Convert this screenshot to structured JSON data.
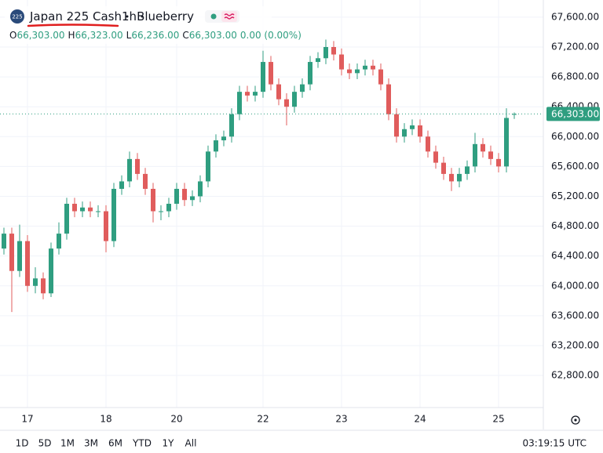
{
  "header": {
    "icon": "225",
    "symbol": "Japan 225 Cash",
    "interval": "1h",
    "broker": "Blueberry",
    "ohlc": [
      {
        "key": "O",
        "value": "66,303.00"
      },
      {
        "key": "H",
        "value": "66,323.00"
      },
      {
        "key": "L",
        "value": "66,236.00"
      },
      {
        "key": "C",
        "value": "66,303.00"
      }
    ],
    "change": "0.00 (0.00%)"
  },
  "chart_data": {
    "type": "candlestick",
    "categories": [
      null,
      null,
      null,
      "17",
      null,
      null,
      null,
      null,
      null,
      null,
      null,
      null,
      null,
      "18",
      null,
      null,
      null,
      null,
      null,
      null,
      null,
      null,
      "20",
      null,
      null,
      null,
      null,
      null,
      null,
      null,
      null,
      null,
      null,
      "22",
      null,
      null,
      null,
      null,
      null,
      null,
      null,
      null,
      null,
      "23",
      null,
      null,
      null,
      null,
      null,
      null,
      null,
      null,
      null,
      "24",
      null,
      null,
      null,
      null,
      null,
      null,
      null,
      null,
      null,
      "25",
      null,
      null
    ],
    "open": [
      64500,
      64700,
      64200,
      64600,
      64000,
      64100,
      63900,
      64500,
      64700,
      65100,
      65000,
      65050,
      65000,
      65000,
      64600,
      65300,
      65400,
      65700,
      65500,
      65300,
      65000,
      65000,
      65100,
      65300,
      65150,
      65200,
      65400,
      65800,
      65950,
      66000,
      66300,
      66600,
      66550,
      66600,
      67000,
      66700,
      66500,
      66400,
      66600,
      66700,
      67000,
      67050,
      67200,
      67100,
      66900,
      66850,
      66900,
      66950,
      66900,
      66700,
      66300,
      66000,
      66100,
      66150,
      66000,
      65800,
      65650,
      65500,
      65400,
      65500,
      65600,
      65900,
      65800,
      65700,
      65600,
      66303
    ],
    "high": [
      64780,
      64780,
      64820,
      64680,
      64250,
      64180,
      64580,
      64850,
      65180,
      65180,
      65130,
      65130,
      65080,
      65080,
      65380,
      65480,
      65800,
      65780,
      65580,
      65380,
      65080,
      65180,
      65380,
      65380,
      65280,
      65480,
      65880,
      66030,
      66080,
      66380,
      66680,
      66680,
      66680,
      67150,
      67080,
      66780,
      66580,
      66680,
      66780,
      67080,
      67130,
      67300,
      67280,
      67180,
      66980,
      66980,
      67030,
      67030,
      66980,
      66780,
      66380,
      66180,
      66230,
      66230,
      66080,
      65880,
      65730,
      65580,
      65580,
      65680,
      66050,
      65980,
      65880,
      65780,
      66380,
      66323
    ],
    "low": [
      64420,
      63650,
      64120,
      63920,
      63900,
      63820,
      63850,
      64420,
      64620,
      64920,
      64920,
      64920,
      64920,
      64450,
      64520,
      65220,
      65320,
      65420,
      65220,
      64850,
      64880,
      64920,
      65020,
      65070,
      65070,
      65120,
      65320,
      65720,
      65870,
      65920,
      66220,
      66470,
      66470,
      66520,
      66620,
      66420,
      66150,
      66320,
      66520,
      66620,
      66920,
      66970,
      67020,
      66820,
      66770,
      66770,
      66820,
      66820,
      66620,
      66220,
      65920,
      65920,
      66020,
      65920,
      65720,
      65570,
      65420,
      65270,
      65320,
      65420,
      65520,
      65720,
      65620,
      65520,
      65520,
      66236
    ],
    "close": [
      64700,
      64200,
      64600,
      64000,
      64100,
      63900,
      64500,
      64700,
      65100,
      65000,
      65050,
      65000,
      65000,
      64600,
      65300,
      65400,
      65700,
      65500,
      65300,
      65000,
      65000,
      65100,
      65300,
      65150,
      65200,
      65400,
      65800,
      65950,
      66000,
      66300,
      66600,
      66550,
      66600,
      67000,
      66700,
      66500,
      66400,
      66600,
      66700,
      67000,
      67050,
      67200,
      67100,
      66900,
      66850,
      66900,
      66950,
      66900,
      66700,
      66300,
      66000,
      66100,
      66150,
      66000,
      65800,
      65650,
      65500,
      65400,
      65500,
      65600,
      65900,
      65800,
      65700,
      65600,
      66250,
      66303
    ],
    "up_color": "#2f9e80",
    "down_color": "#e05c5c",
    "ylim": [
      62370,
      67830
    ],
    "yticks": [
      {
        "value": 62800,
        "label": "62,800.00"
      },
      {
        "value": 63200,
        "label": "63,200.00"
      },
      {
        "value": 63600,
        "label": "63,600.00"
      },
      {
        "value": 64000,
        "label": "64,000.00"
      },
      {
        "value": 64400,
        "label": "64,400.00"
      },
      {
        "value": 64800,
        "label": "64,800.00"
      },
      {
        "value": 65200,
        "label": "65,200.00"
      },
      {
        "value": 65600,
        "label": "65,600.00"
      },
      {
        "value": 66000,
        "label": "66,000.00"
      },
      {
        "value": 66400,
        "label": "66,400.00"
      },
      {
        "value": 66800,
        "label": "66,800.00"
      },
      {
        "value": 67200,
        "label": "67,200.00"
      },
      {
        "value": 67600,
        "label": "67,600.00"
      }
    ],
    "last_price": {
      "value": 66303,
      "label": "66,303.00"
    },
    "grid": true
  },
  "toolbar": {
    "ranges": [
      "1D",
      "5D",
      "1M",
      "3M",
      "6M",
      "YTD",
      "1Y",
      "All"
    ],
    "time": "03:19:15 UTC"
  }
}
